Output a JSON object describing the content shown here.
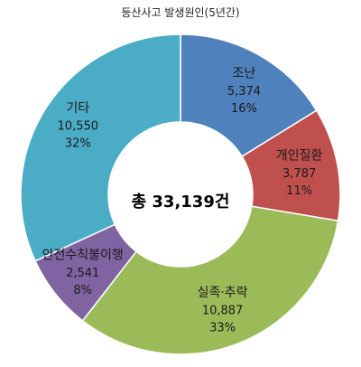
{
  "chart_data": {
    "type": "pie",
    "title": "등산사고 발생원인(5년간)",
    "center_label": "총 33,139건",
    "slices": [
      {
        "label": "조난",
        "value": 5374,
        "value_text": "5,374",
        "percent_text": "16%",
        "color": "#4F81BD"
      },
      {
        "label": "개인질환",
        "value": 3787,
        "value_text": "3,787",
        "percent_text": "11%",
        "color": "#C0504D"
      },
      {
        "label": "실족·추락",
        "value": 10887,
        "value_text": "10,887",
        "percent_text": "33%",
        "color": "#9BBB59"
      },
      {
        "label": "안전수칙불이행",
        "value": 2541,
        "value_text": "2,541",
        "percent_text": "8%",
        "color": "#8064A2"
      },
      {
        "label": "기타",
        "value": 10550,
        "value_text": "10,550",
        "percent_text": "32%",
        "color": "#4BACC6"
      }
    ]
  }
}
